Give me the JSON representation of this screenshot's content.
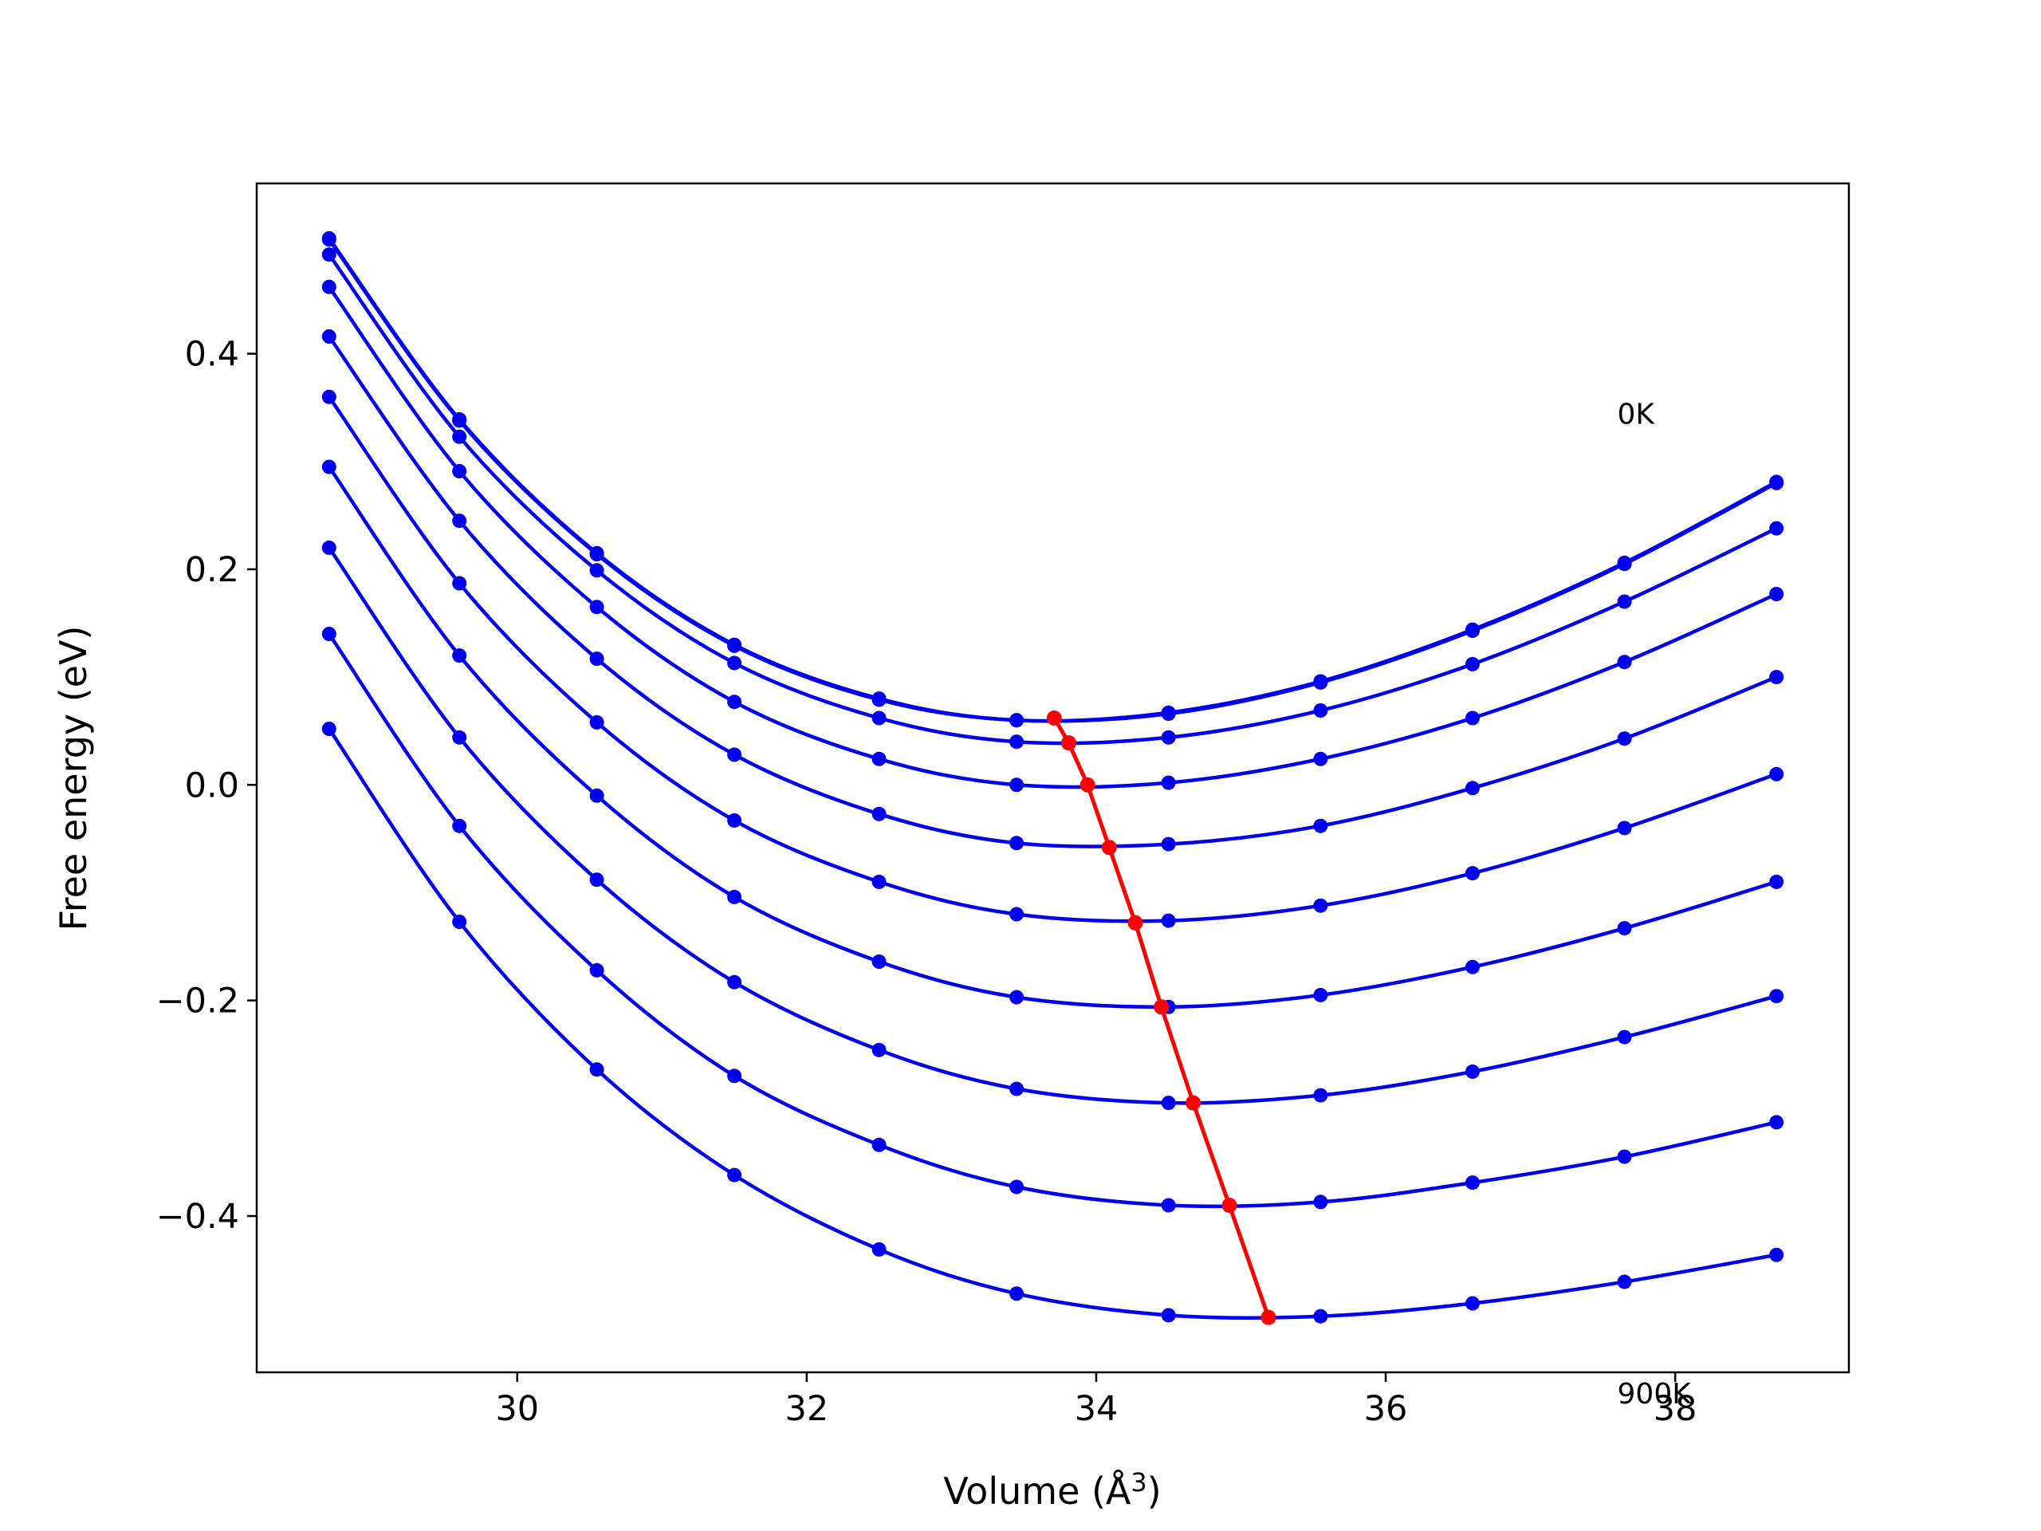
{
  "chart_data": {
    "type": "line",
    "title": "",
    "xlabel": "Volume (Å",
    "xlabel_sup": "3",
    "xlabel_close": ")",
    "ylabel": "Free energy (eV)",
    "xlim": [
      28.2,
      39.2
    ],
    "ylim": [
      -0.545,
      0.558
    ],
    "xticks": [
      30,
      32,
      34,
      36,
      38
    ],
    "xtick_labels": [
      "30",
      "32",
      "34",
      "36",
      "38"
    ],
    "yticks": [
      -0.4,
      -0.2,
      0.0,
      0.2,
      0.4
    ],
    "ytick_labels": [
      "−0.4",
      "−0.2",
      "0.0",
      "0.2",
      "0.4"
    ],
    "annotations": [
      {
        "text": "0K",
        "x": 37.6,
        "y": 0.335
      },
      {
        "text": "900K",
        "x": 37.6,
        "y": -0.574
      }
    ],
    "x": [
      28.7,
      29.6,
      30.55,
      31.5,
      32.5,
      33.45,
      34.5,
      35.55,
      36.6,
      37.65,
      38.7
    ],
    "series": [
      {
        "values": [
          0.507,
          0.339,
          0.215,
          0.13,
          0.08,
          0.06,
          0.067,
          0.096,
          0.144,
          0.206,
          0.281
        ],
        "color": "#0000ee"
      },
      {
        "values": [
          0.506,
          0.338,
          0.214,
          0.129,
          0.079,
          0.06,
          0.066,
          0.095,
          0.143,
          0.205,
          0.28
        ],
        "color": "#0000ee"
      },
      {
        "values": [
          0.492,
          0.323,
          0.199,
          0.113,
          0.062,
          0.04,
          0.044,
          0.069,
          0.112,
          0.17,
          0.238
        ],
        "color": "#0000ee"
      },
      {
        "values": [
          0.462,
          0.291,
          0.165,
          0.077,
          0.024,
          0.0,
          0.002,
          0.024,
          0.062,
          0.114,
          0.177
        ],
        "color": "#0000ee"
      },
      {
        "values": [
          0.416,
          0.245,
          0.117,
          0.028,
          -0.027,
          -0.054,
          -0.055,
          -0.038,
          -0.003,
          0.043,
          0.1
        ],
        "color": "#0000ee"
      },
      {
        "values": [
          0.36,
          0.187,
          0.058,
          -0.033,
          -0.09,
          -0.12,
          -0.126,
          -0.112,
          -0.082,
          -0.04,
          0.01
        ],
        "color": "#0000ee"
      },
      {
        "values": [
          0.295,
          0.12,
          -0.01,
          -0.104,
          -0.164,
          -0.197,
          -0.206,
          -0.195,
          -0.169,
          -0.133,
          -0.09
        ],
        "color": "#0000ee"
      },
      {
        "values": [
          0.22,
          0.044,
          -0.088,
          -0.183,
          -0.246,
          -0.282,
          -0.295,
          -0.288,
          -0.266,
          -0.234,
          -0.196
        ],
        "color": "#0000ee"
      },
      {
        "values": [
          0.14,
          -0.038,
          -0.172,
          -0.27,
          -0.334,
          -0.373,
          -0.39,
          -0.387,
          -0.369,
          -0.345,
          -0.313
        ],
        "color": "#0000ee"
      },
      {
        "values": [
          0.052,
          -0.127,
          -0.264,
          -0.362,
          -0.431,
          -0.472,
          -0.492,
          -0.493,
          -0.481,
          -0.461,
          -0.436
        ],
        "color": "#0000ee"
      }
    ],
    "minimum_line": {
      "color": "#ff0000",
      "points": [
        [
          33.71,
          0.062
        ],
        [
          33.81,
          0.039
        ],
        [
          33.94,
          0.0
        ],
        [
          34.09,
          -0.058
        ],
        [
          34.27,
          -0.128
        ],
        [
          34.45,
          -0.206
        ],
        [
          34.67,
          -0.295
        ],
        [
          34.92,
          -0.39
        ],
        [
          35.19,
          -0.494
        ]
      ]
    },
    "grid": false,
    "legend": "none"
  }
}
